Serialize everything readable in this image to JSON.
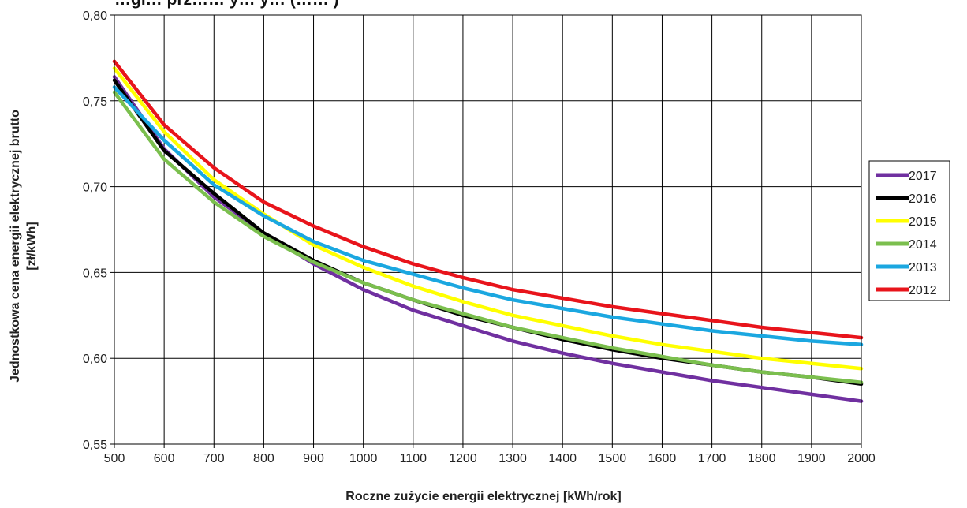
{
  "chart_data": {
    "type": "line",
    "title": "…gi… prz…… y… y… (…… )",
    "xlabel": "Roczne zużycie energii elektrycznej [kWh/rok]",
    "ylabel_line1": "Jednostkowa cena energii elektrycznej brutto",
    "ylabel_line2": "[zł/kWh]",
    "x": [
      500,
      600,
      700,
      800,
      900,
      1000,
      1100,
      1200,
      1300,
      1400,
      1500,
      1600,
      1700,
      1800,
      1900,
      2000
    ],
    "x_tick_labels": [
      "500",
      "600",
      "700",
      "800",
      "900",
      "1000",
      "1100",
      "1200",
      "1300",
      "1400",
      "1500",
      "1600",
      "1700",
      "1800",
      "1900",
      "2000"
    ],
    "y_tick_values": [
      0.55,
      0.6,
      0.65,
      0.7,
      0.75,
      0.8
    ],
    "y_tick_labels": [
      "0,55",
      "0,60",
      "0,65",
      "0,70",
      "0,75",
      "0,80"
    ],
    "xlim": [
      500,
      2000
    ],
    "ylim": [
      0.55,
      0.8
    ],
    "grid": true,
    "legend_position": "right",
    "series": [
      {
        "name": "2017",
        "color": "#7030a0",
        "values": [
          0.764,
          0.722,
          0.694,
          0.673,
          0.655,
          0.64,
          0.628,
          0.619,
          0.61,
          0.603,
          0.597,
          0.592,
          0.587,
          0.583,
          0.579,
          0.575
        ]
      },
      {
        "name": "2016",
        "color": "#000000",
        "values": [
          0.762,
          0.721,
          0.696,
          0.673,
          0.657,
          0.644,
          0.634,
          0.625,
          0.618,
          0.611,
          0.605,
          0.6,
          0.596,
          0.592,
          0.589,
          0.585
        ]
      },
      {
        "name": "2015",
        "color": "#ffff00",
        "values": [
          0.769,
          0.732,
          0.704,
          0.684,
          0.666,
          0.653,
          0.642,
          0.633,
          0.625,
          0.619,
          0.613,
          0.608,
          0.604,
          0.6,
          0.597,
          0.594
        ]
      },
      {
        "name": "2014",
        "color": "#7bbf4e",
        "values": [
          0.755,
          0.716,
          0.691,
          0.671,
          0.656,
          0.644,
          0.634,
          0.626,
          0.618,
          0.612,
          0.606,
          0.601,
          0.596,
          0.592,
          0.589,
          0.586
        ]
      },
      {
        "name": "2013",
        "color": "#1ba7e0",
        "values": [
          0.758,
          0.727,
          0.701,
          0.683,
          0.668,
          0.657,
          0.649,
          0.641,
          0.634,
          0.629,
          0.624,
          0.62,
          0.616,
          0.613,
          0.61,
          0.608
        ]
      },
      {
        "name": "2012",
        "color": "#e8141b",
        "values": [
          0.773,
          0.736,
          0.711,
          0.691,
          0.677,
          0.665,
          0.655,
          0.647,
          0.64,
          0.635,
          0.63,
          0.626,
          0.622,
          0.618,
          0.615,
          0.612
        ]
      }
    ]
  }
}
